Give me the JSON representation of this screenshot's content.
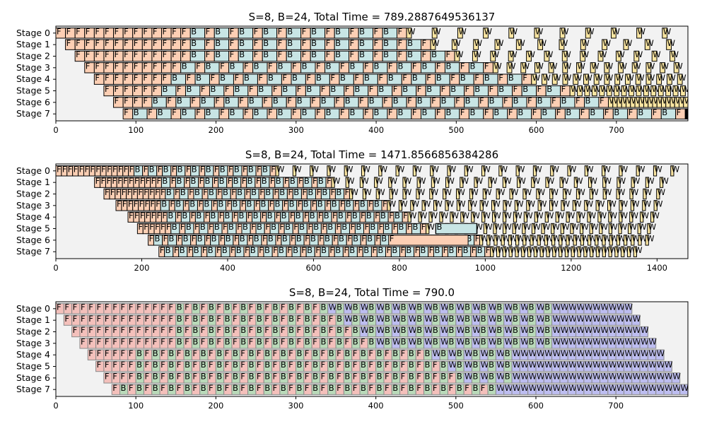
{
  "colors": {
    "pipeline_background": "#f2f2f2",
    "chart1": {
      "F": "#fdcfb4",
      "B": "#c8e5e5",
      "W": "#fbe6a2",
      "edge": "#000000"
    },
    "chart2": {
      "F": "#fdcfb4",
      "B": "#c8e5e5",
      "W": "#fbe6a2",
      "edge": "#000000"
    },
    "chart3": {
      "F": "#f4c0bb",
      "B": "#b9dab9",
      "W": "#bdbdf0",
      "edge": "#8a8a8a"
    }
  },
  "chart_data": [
    {
      "type": "gantt",
      "title": "S=8, B=24, Total Time = 789.2887649536137",
      "stages": [
        "Stage 0",
        "Stage 1",
        "Stage 2",
        "Stage 3",
        "Stage 4",
        "Stage 5",
        "Stage 6",
        "Stage 7"
      ],
      "xlim": [
        0,
        789.29
      ],
      "xticks": [
        0,
        100,
        200,
        300,
        400,
        500,
        600,
        700
      ],
      "xtick_labels": [
        "0",
        "100",
        "200",
        "300",
        "400",
        "500",
        "600",
        "700"
      ],
      "grid": false,
      "task_labels": [
        "F",
        "B",
        "W"
      ],
      "task_durations": {
        "F": 12,
        "B": 18,
        "W": 6
      },
      "stage_start_offsets": [
        0,
        12,
        24,
        36,
        48,
        60,
        72,
        84
      ],
      "warmup_forward_counts": [
        14,
        13,
        12,
        10,
        8,
        6,
        4,
        1
      ],
      "steady_pairs_per_stage": [
        9,
        10,
        11,
        13,
        15,
        17,
        19,
        23
      ],
      "pending_w_per_stage": [
        11,
        12,
        13,
        14,
        15,
        16,
        18,
        20
      ],
      "stage_end_times": [
        789.29,
        789.29,
        789.29,
        789.29,
        789.29,
        789.29,
        789.29,
        789.29
      ]
    },
    {
      "type": "gantt",
      "title": "S=8, B=24, Total Time = 1471.8566856384286",
      "stages": [
        "Stage 0",
        "Stage 1",
        "Stage 2",
        "Stage 3",
        "Stage 4",
        "Stage 5",
        "Stage 6",
        "Stage 7"
      ],
      "xlim": [
        0,
        1471.86
      ],
      "xticks": [
        0,
        200,
        400,
        600,
        800,
        1000,
        1200,
        1400
      ],
      "xtick_labels": [
        "0",
        "200",
        "400",
        "600",
        "800",
        "1000",
        "1200",
        "1400"
      ],
      "grid": false,
      "task_labels": [
        "F",
        "B",
        "W"
      ],
      "task_durations": {
        "F": 13,
        "B": 20,
        "W": 7
      },
      "stage_start_offsets": [
        0,
        90,
        112,
        140,
        168,
        190,
        215,
        240
      ],
      "warmup_forward_counts": [
        14,
        12,
        11,
        8,
        7,
        6,
        1,
        1
      ],
      "steady_pairs_per_stage": [
        10,
        12,
        13,
        16,
        17,
        18,
        23,
        23
      ],
      "pending_w_per_stage": [
        24,
        24,
        24,
        24,
        24,
        24,
        24,
        24
      ],
      "stage_end_times": [
        1471.86,
        1440,
        1430,
        1420,
        1410,
        1400,
        1390,
        1360
      ],
      "long_tasks": [
        {
          "stage": 5,
          "label": "B",
          "start": 885,
          "end": 980
        },
        {
          "stage": 6,
          "label": "F",
          "start": 775,
          "end": 960
        }
      ]
    },
    {
      "type": "gantt",
      "title": "S=8, B=24, Total Time = 790.0",
      "stages": [
        "Stage 0",
        "Stage 1",
        "Stage 2",
        "Stage 3",
        "Stage 4",
        "Stage 5",
        "Stage 6",
        "Stage 7"
      ],
      "xlim": [
        0,
        790
      ],
      "xticks": [
        0,
        100,
        200,
        300,
        400,
        500,
        600,
        700
      ],
      "xtick_labels": [
        "0",
        "100",
        "200",
        "300",
        "400",
        "500",
        "600",
        "700"
      ],
      "grid": false,
      "task_labels": [
        "F",
        "B",
        "W"
      ],
      "task_durations": {
        "F": 10,
        "B": 10,
        "W": 10
      },
      "stage_start_offsets": [
        0,
        10,
        20,
        30,
        40,
        50,
        60,
        70
      ],
      "warmup_forward_counts": [
        15,
        14,
        13,
        12,
        6,
        5,
        4,
        1
      ],
      "steady_pairs_per_stage": [
        9,
        10,
        11,
        12,
        18,
        19,
        20,
        23
      ],
      "cooldown_bw_pairs_per_stage": [
        15,
        14,
        13,
        12,
        6,
        5,
        4,
        1
      ],
      "pending_w_per_stage": [
        9,
        10,
        11,
        12,
        18,
        19,
        20,
        23
      ],
      "stage_end_times": [
        720,
        730,
        740,
        750,
        760,
        770,
        780,
        790
      ]
    }
  ]
}
